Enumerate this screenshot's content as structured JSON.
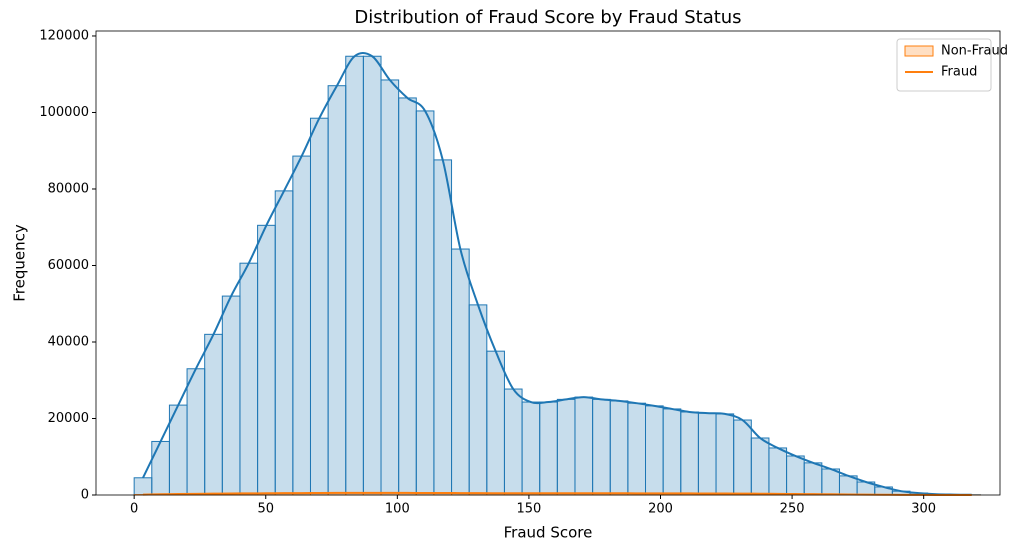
{
  "chart_data": {
    "type": "histogram",
    "title": "Distribution of Fraud Score by Fraud Status",
    "x_label": "Fraud Score",
    "y_label": "Frequency",
    "bins": [
      0,
      6.7,
      13.4,
      20.1,
      26.8,
      33.5,
      40.2,
      46.9,
      53.6,
      60.3,
      67,
      73.7,
      80.4,
      87.1,
      93.8,
      100.5,
      107.2,
      113.9,
      120.6,
      127.3,
      134,
      140.7,
      147.4,
      154.1,
      160.8,
      167.5,
      174.2,
      180.9,
      187.6,
      194.3,
      201,
      207.7,
      214.4,
      221.1,
      227.8,
      234.5,
      241.2,
      247.9,
      254.6,
      261.3,
      268,
      274.7,
      281.4,
      288.1,
      294.8,
      301.5,
      308.2,
      314.9,
      321.6
    ],
    "series": [
      {
        "color": "#1f77b4",
        "values": [
          4500,
          14000,
          23500,
          33000,
          42000,
          52000,
          60600,
          70500,
          79500,
          88600,
          98500,
          107000,
          114700,
          114700,
          108500,
          103800,
          100400,
          87600,
          64300,
          49700,
          37600,
          27700,
          24300,
          24300,
          25000,
          25600,
          25000,
          24600,
          24000,
          23300,
          22500,
          21700,
          21400,
          21200,
          19600,
          14900,
          12300,
          10200,
          8400,
          6800,
          5000,
          3400,
          2100,
          1000,
          500,
          200,
          100,
          50
        ]
      },
      {
        "color": "#ff7f0e",
        "values": [
          100,
          200,
          250,
          300,
          350,
          400,
          420,
          450,
          480,
          500,
          520,
          540,
          560,
          560,
          550,
          540,
          530,
          520,
          500,
          480,
          470,
          460,
          460,
          460,
          470,
          470,
          460,
          450,
          440,
          430,
          420,
          410,
          400,
          390,
          370,
          330,
          300,
          260,
          220,
          180,
          140,
          100,
          70,
          40,
          20,
          10,
          5,
          2
        ]
      }
    ],
    "kde": true,
    "legend": [
      {
        "label": "Non-Fraud",
        "color": "#ff7f0e",
        "kind": "patch"
      },
      {
        "label": "Fraud",
        "color": "#ff7f0e",
        "kind": "line"
      }
    ],
    "legend_position": "upper-right",
    "xlim": [
      -14.5,
      329
    ],
    "ylim": [
      0,
      121300
    ],
    "xticks": [
      0,
      50,
      100,
      150,
      200,
      250,
      300
    ],
    "yticks": [
      0,
      20000,
      40000,
      60000,
      80000,
      100000,
      120000
    ]
  }
}
